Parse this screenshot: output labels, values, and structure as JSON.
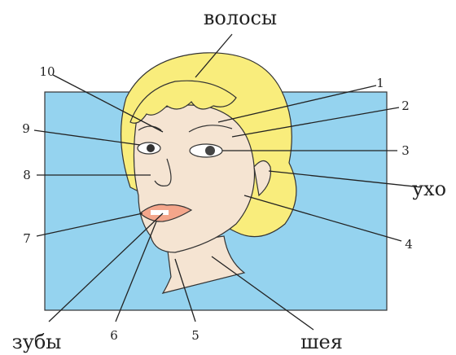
{
  "labels": {
    "hair": "волосы",
    "ear": "ухо",
    "neck": "шея",
    "teeth": "зубы",
    "numbers": [
      "1",
      "2",
      "3",
      "4",
      "5",
      "6",
      "7",
      "8",
      "9",
      "10"
    ]
  }
}
